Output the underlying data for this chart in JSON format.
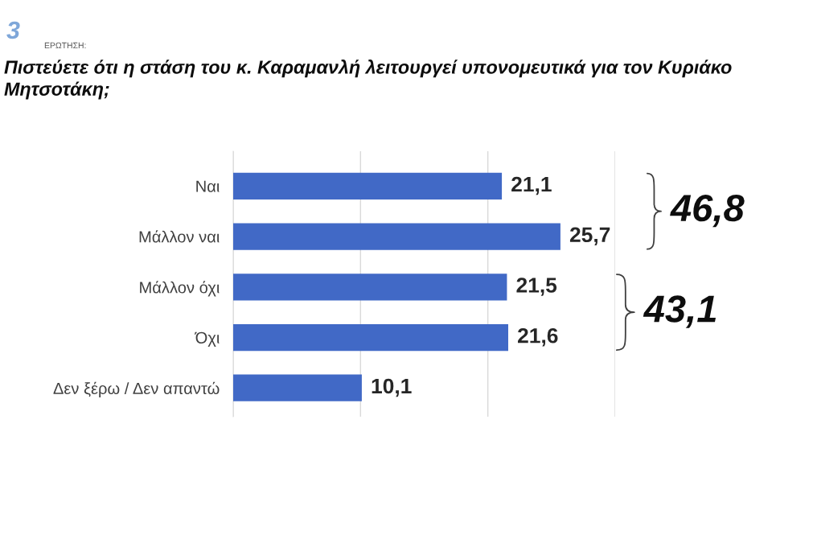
{
  "chart_data": {
    "type": "bar",
    "orientation": "horizontal",
    "title": "Πιστεύετε ότι η στάση του κ. Καραμανλή λειτουργεί υπονομευτικά για τον Κυριάκο Μητσοτάκη;",
    "categories": [
      "Ναι",
      "Μάλλον ναι",
      "Μάλλον όχι",
      "Όχι",
      "Δεν ξέρω / Δεν απαντώ"
    ],
    "values": [
      21.1,
      25.7,
      21.5,
      21.6,
      10.1
    ],
    "value_labels": [
      "21,1",
      "25,7",
      "21,5",
      "21,6",
      "10,1"
    ],
    "color": "#4169c6",
    "xlim": [
      0,
      30
    ],
    "xticks": [
      {
        "value": 0,
        "label": null
      },
      {
        "value": 10,
        "label": null
      },
      {
        "value": 20,
        "label": null
      },
      {
        "value": 30,
        "label": null
      }
    ],
    "grid": "x",
    "tick_labels": "y",
    "annotations": [
      "3",
      "ΕΡΩΤΗΣΗ:",
      "46,8",
      "43,1"
    ]
  }
}
